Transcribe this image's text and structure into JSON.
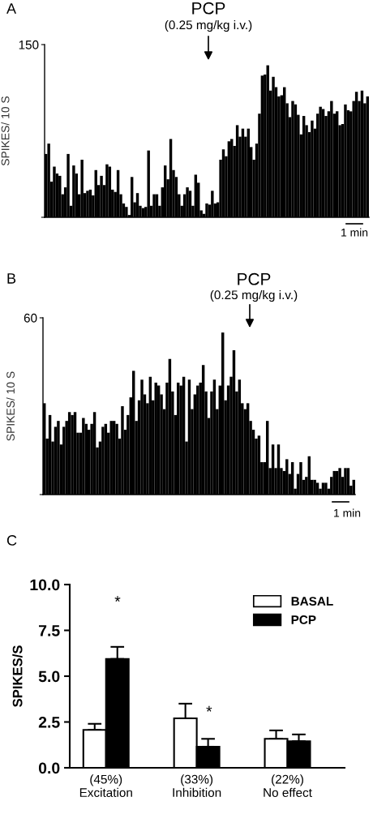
{
  "chart_data": [
    {
      "type": "bar",
      "title": "A",
      "ylabel": "SPIKES/ 10 S",
      "color": "#000000",
      "ylim": [
        0,
        150
      ],
      "yticks": [
        {
          "value": 0,
          "label": null
        },
        150
      ],
      "annotations": [
        "PCP",
        "(0.25 mg/kg i.v.)",
        "1 min"
      ],
      "categories": [
        null,
        null,
        null,
        null,
        null,
        null,
        null,
        null,
        null,
        null,
        null,
        null,
        null,
        null,
        null,
        null,
        null,
        null,
        null,
        null,
        null,
        null,
        null,
        null,
        null,
        null,
        null,
        null,
        null,
        null,
        null,
        null,
        null,
        null,
        null,
        null,
        null,
        null,
        null,
        null,
        null,
        null,
        null,
        null,
        null,
        null,
        null,
        null,
        null,
        null,
        null,
        null,
        null,
        null,
        null,
        null,
        null,
        null,
        null,
        null,
        null,
        null,
        null,
        null,
        null,
        null,
        null,
        null,
        null,
        null,
        null,
        null,
        null,
        null,
        null,
        null,
        null,
        null,
        null,
        null,
        null,
        null,
        null,
        null,
        null,
        null,
        null,
        null,
        null,
        null,
        null,
        null,
        null,
        null,
        null,
        null,
        null,
        null,
        null,
        null,
        null,
        null,
        null,
        null,
        null,
        null,
        null,
        null,
        null,
        null,
        null,
        null,
        null,
        null,
        null,
        null,
        null
      ],
      "values": [
        55,
        64,
        31,
        44,
        38,
        36,
        20,
        26,
        55,
        10,
        45,
        38,
        20,
        50,
        21,
        23,
        24,
        19,
        41,
        28,
        36,
        28,
        46,
        44,
        24,
        22,
        41,
        20,
        12,
        9,
        2,
        35,
        13,
        21,
        10,
        8,
        9,
        58,
        10,
        20,
        20,
        10,
        26,
        45,
        33,
        68,
        41,
        35,
        20,
        10,
        20,
        26,
        23,
        10,
        37,
        30,
        6,
        3,
        12,
        11,
        23,
        12,
        13,
        50,
        59,
        53,
        66,
        68,
        62,
        80,
        70,
        77,
        70,
        77,
        61,
        50,
        64,
        90,
        123,
        124,
        132,
        110,
        122,
        113,
        105,
        106,
        113,
        99,
        87,
        101,
        98,
        89,
        72,
        88,
        80,
        74,
        84,
        77,
        90,
        96,
        94,
        88,
        92,
        101,
        90,
        92,
        80,
        81,
        98,
        93,
        92,
        101,
        109,
        101,
        110,
        99,
        105
      ]
    },
    {
      "type": "bar",
      "title": "B",
      "ylabel": "SPIKES/ 10 S",
      "color": "#000000",
      "ylim": [
        0,
        60
      ],
      "yticks": [
        {
          "value": 0,
          "label": null
        },
        60
      ],
      "annotations": [
        "PCP",
        "(0.25 mg/kg i.v.)",
        "1 min"
      ],
      "categories": [
        null,
        null,
        null,
        null,
        null,
        null,
        null,
        null,
        null,
        null,
        null,
        null,
        null,
        null,
        null,
        null,
        null,
        null,
        null,
        null,
        null,
        null,
        null,
        null,
        null,
        null,
        null,
        null,
        null,
        null,
        null,
        null,
        null,
        null,
        null,
        null,
        null,
        null,
        null,
        null,
        null,
        null,
        null,
        null,
        null,
        null,
        null,
        null,
        null,
        null,
        null,
        null,
        null,
        null,
        null,
        null,
        null,
        null,
        null,
        null,
        null,
        null,
        null,
        null,
        null,
        null,
        null,
        null,
        null,
        null,
        null,
        null,
        null,
        null,
        null,
        null,
        null,
        null,
        null,
        null,
        null,
        null,
        null,
        null,
        null,
        null,
        null,
        null,
        null,
        null,
        null,
        null,
        null,
        null,
        null,
        null,
        null,
        null,
        null,
        null,
        null,
        null,
        null,
        null,
        null,
        null,
        null,
        null,
        null,
        null,
        null,
        null
      ],
      "values": [
        31,
        19,
        27,
        18,
        23,
        25,
        17,
        23,
        25,
        28,
        27,
        28,
        21,
        21,
        26,
        24,
        22,
        24,
        28,
        16,
        18,
        23,
        24,
        21,
        25,
        25,
        24,
        19,
        30,
        22,
        27,
        33,
        42,
        25,
        32,
        39,
        34,
        31,
        40,
        32,
        38,
        37,
        34,
        29,
        38,
        46,
        35,
        27,
        38,
        37,
        40,
        18,
        39,
        29,
        34,
        37,
        38,
        44,
        35,
        26,
        35,
        39,
        29,
        37,
        55,
        32,
        37,
        40,
        49,
        35,
        39,
        31,
        29,
        31,
        25,
        22,
        19,
        20,
        11,
        11,
        25,
        9,
        17,
        9,
        17,
        9,
        8,
        12,
        7,
        11,
        2,
        7,
        11,
        5,
        6,
        13,
        5,
        5,
        4,
        2,
        4,
        4,
        2,
        6,
        8,
        8,
        9,
        6,
        9,
        9,
        3,
        5
      ]
    },
    {
      "type": "bar",
      "title": "C",
      "ylabel": "SPIKES/S",
      "categories": [
        "(45%)\nExcitation",
        "(33%)\nInhibition",
        "(22%)\nNo effect"
      ],
      "series": [
        {
          "name": "BASAL",
          "color": "#ffffff",
          "values": [
            2.07,
            2.7,
            1.58
          ],
          "errors": [
            [
              2.07,
              2.4
            ],
            [
              2.7,
              3.5
            ],
            [
              1.58,
              2.04
            ]
          ]
        },
        {
          "name": "PCP",
          "color": "#000000",
          "values": [
            5.94,
            1.15,
            1.45
          ],
          "errors": [
            [
              5.94,
              6.6
            ],
            [
              1.15,
              1.58
            ],
            [
              1.45,
              1.82
            ]
          ]
        }
      ],
      "ylim": [
        0,
        10
      ],
      "yticks": [
        {
          "value": 0,
          "label": "0.0"
        },
        2.5,
        {
          "value": 5,
          "label": "5.0"
        },
        7.5,
        {
          "value": 10,
          "label": "10.0"
        }
      ],
      "legend": "top right",
      "annotations": [
        "*",
        "*"
      ]
    }
  ]
}
